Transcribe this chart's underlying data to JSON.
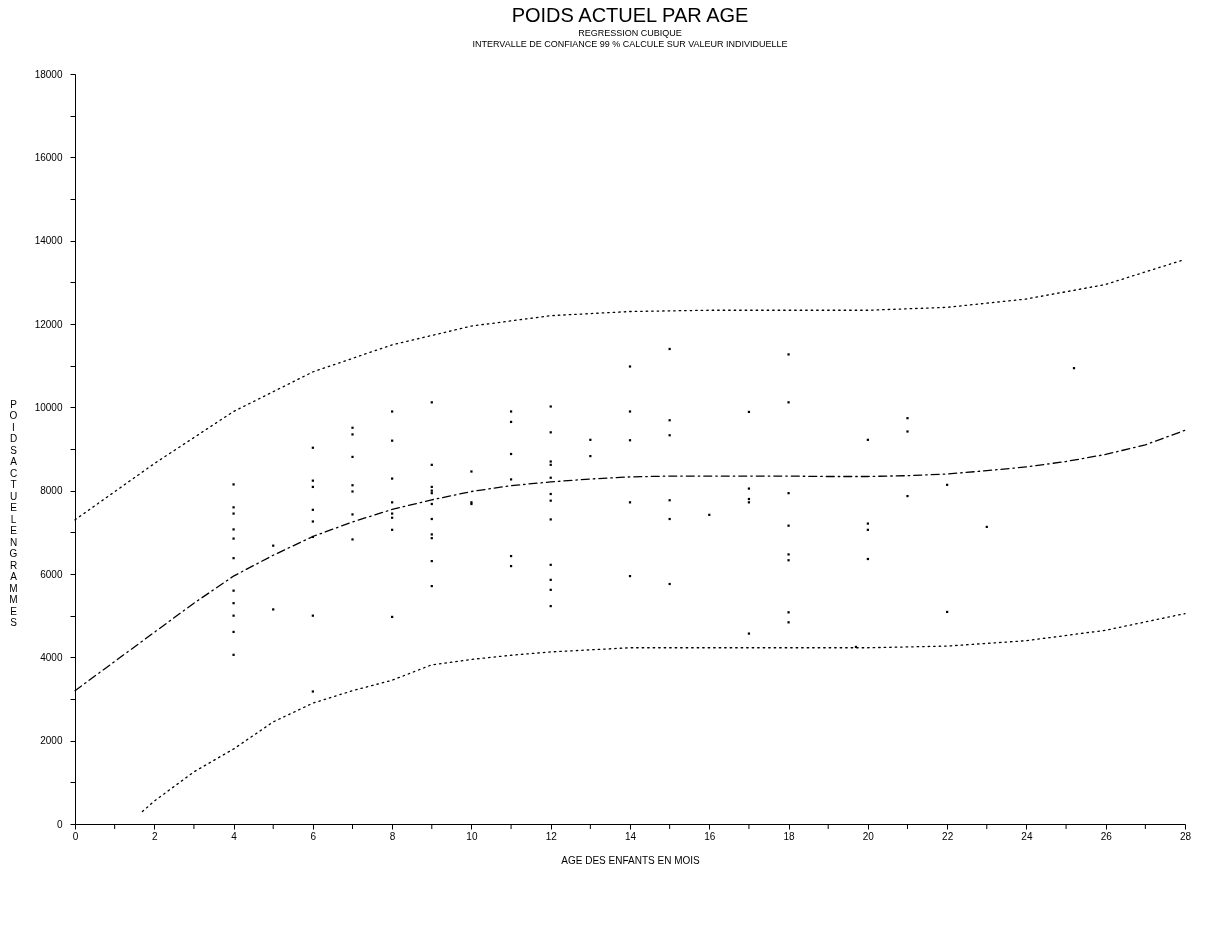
{
  "chart_data": {
    "type": "scatter",
    "title": "POIDS  ACTUEL PAR AGE",
    "subtitle": "REGRESSION CUBIQUE\nINTERVALLE DE CONFIANCE 99 % CALCULE SUR VALEUR INDIVIDUELLE",
    "xlabel": "AGE DES ENFANTS EN MOIS",
    "ylabel": "POIDS ACTUEL EN GRAMMES",
    "xlim": [
      0,
      28
    ],
    "ylim": [
      0,
      18000
    ],
    "xticks": [
      0,
      {
        "value": 1,
        "label": null
      },
      2,
      {
        "value": 3,
        "label": null
      },
      4,
      {
        "value": 5,
        "label": null
      },
      6,
      {
        "value": 7,
        "label": null
      },
      8,
      {
        "value": 9,
        "label": null
      },
      10,
      {
        "value": 11,
        "label": null
      },
      12,
      {
        "value": 13,
        "label": null
      },
      14,
      {
        "value": 15,
        "label": null
      },
      16,
      {
        "value": 17,
        "label": null
      },
      18,
      {
        "value": 19,
        "label": null
      },
      20,
      {
        "value": 21,
        "label": null
      },
      22,
      {
        "value": 23,
        "label": null
      },
      24,
      {
        "value": 25,
        "label": null
      },
      26,
      {
        "value": 27,
        "label": null
      },
      28
    ],
    "yticks": [
      0,
      {
        "value": 1000,
        "label": null
      },
      2000,
      {
        "value": 3000,
        "label": null
      },
      4000,
      {
        "value": 5000,
        "label": null
      },
      6000,
      {
        "value": 7000,
        "label": null
      },
      8000,
      {
        "value": 9000,
        "label": null
      },
      10000,
      {
        "value": 11000,
        "label": null
      },
      12000,
      {
        "value": 13000,
        "label": null
      },
      14000,
      {
        "value": 15000,
        "label": null
      },
      16000,
      {
        "value": 17000,
        "label": null
      },
      18000
    ],
    "grid": false,
    "marker": "square",
    "series": [
      {
        "type": "scatter",
        "color": "#000000",
        "x": [
          4,
          4,
          4,
          4,
          4,
          4,
          4,
          4,
          4,
          4,
          4,
          5,
          5,
          6,
          6,
          6,
          6,
          6,
          6,
          6,
          6,
          7,
          7,
          7,
          7,
          7,
          7,
          7,
          8,
          8,
          8,
          8,
          8,
          8,
          8,
          8,
          9,
          9,
          9,
          9,
          9,
          9,
          9,
          9,
          9,
          9,
          9,
          10,
          10,
          10,
          11,
          11,
          11,
          11,
          11,
          11,
          12,
          12,
          12,
          12,
          12,
          12,
          12,
          12,
          12,
          12,
          12,
          12,
          13,
          13,
          14,
          14,
          14,
          14,
          14,
          15,
          15,
          15,
          15,
          15,
          15,
          16,
          17,
          17,
          17,
          17,
          17,
          18,
          18,
          18,
          18,
          18,
          18,
          18,
          18,
          19.7,
          20,
          20,
          20,
          20,
          21,
          21,
          21,
          22,
          22,
          23,
          25.2
        ],
        "values": [
          8150,
          7600,
          7450,
          7070,
          6850,
          6380,
          5600,
          5300,
          5000,
          4610,
          4060,
          6680,
          5150,
          9030,
          8240,
          8090,
          7540,
          7260,
          6890,
          5000,
          3180,
          9510,
          9350,
          8810,
          8130,
          7980,
          7430,
          6830,
          9900,
          9200,
          8290,
          7720,
          7450,
          7350,
          7060,
          4970,
          10120,
          8620,
          8090,
          8000,
          7940,
          7680,
          7320,
          6950,
          6860,
          6310,
          5710,
          8460,
          7720,
          7680,
          9900,
          9650,
          8880,
          8270,
          6430,
          6190,
          10020,
          9400,
          8700,
          8620,
          8310,
          7920,
          7760,
          7310,
          6220,
          5860,
          5620,
          5230,
          9220,
          8830,
          10980,
          9900,
          9210,
          7720,
          5950,
          11400,
          9690,
          9330,
          7770,
          7320,
          5760,
          7420,
          9890,
          8050,
          7800,
          7720,
          4570,
          11270,
          10120,
          7940,
          7160,
          6470,
          6330,
          5080,
          4840,
          4250,
          9220,
          7210,
          7060,
          6360,
          9740,
          9420,
          7870,
          8140,
          5090,
          7130,
          10940
        ]
      },
      {
        "type": "line",
        "marker": "none",
        "line_style": "dashdot",
        "color": "#000000",
        "x": [
          0,
          1,
          2,
          3,
          4,
          5,
          6,
          7,
          8,
          9,
          10,
          11,
          12,
          13,
          14,
          15,
          16,
          17,
          18,
          19,
          20,
          21,
          22,
          23,
          24,
          25,
          26,
          27,
          28
        ],
        "values": [
          3200,
          3900,
          4600,
          5300,
          5950,
          6450,
          6900,
          7250,
          7550,
          7780,
          7980,
          8120,
          8210,
          8280,
          8330,
          8350,
          8350,
          8350,
          8350,
          8340,
          8340,
          8360,
          8400,
          8480,
          8570,
          8700,
          8870,
          9100,
          9450
        ]
      },
      {
        "type": "line",
        "marker": "none",
        "line_style": "dotted",
        "color": "#000000",
        "x": [
          0,
          2,
          4,
          6,
          8,
          10,
          12,
          14,
          16,
          18,
          20,
          22,
          24,
          26,
          28
        ],
        "values": [
          7300,
          8650,
          9900,
          10850,
          11500,
          11950,
          12200,
          12300,
          12330,
          12330,
          12330,
          12400,
          12600,
          12950,
          13550
        ]
      },
      {
        "type": "line",
        "marker": "none",
        "line_style": "dotted",
        "color": "#000000",
        "x": [
          1.7,
          2,
          3,
          4,
          5,
          6,
          7,
          8,
          9,
          10,
          11,
          12,
          13,
          14,
          16,
          18,
          20,
          22,
          24,
          26,
          28
        ],
        "values": [
          300,
          550,
          1250,
          1800,
          2450,
          2900,
          3200,
          3450,
          3820,
          3950,
          4050,
          4130,
          4180,
          4230,
          4230,
          4230,
          4230,
          4270,
          4400,
          4650,
          5050
        ]
      }
    ]
  }
}
